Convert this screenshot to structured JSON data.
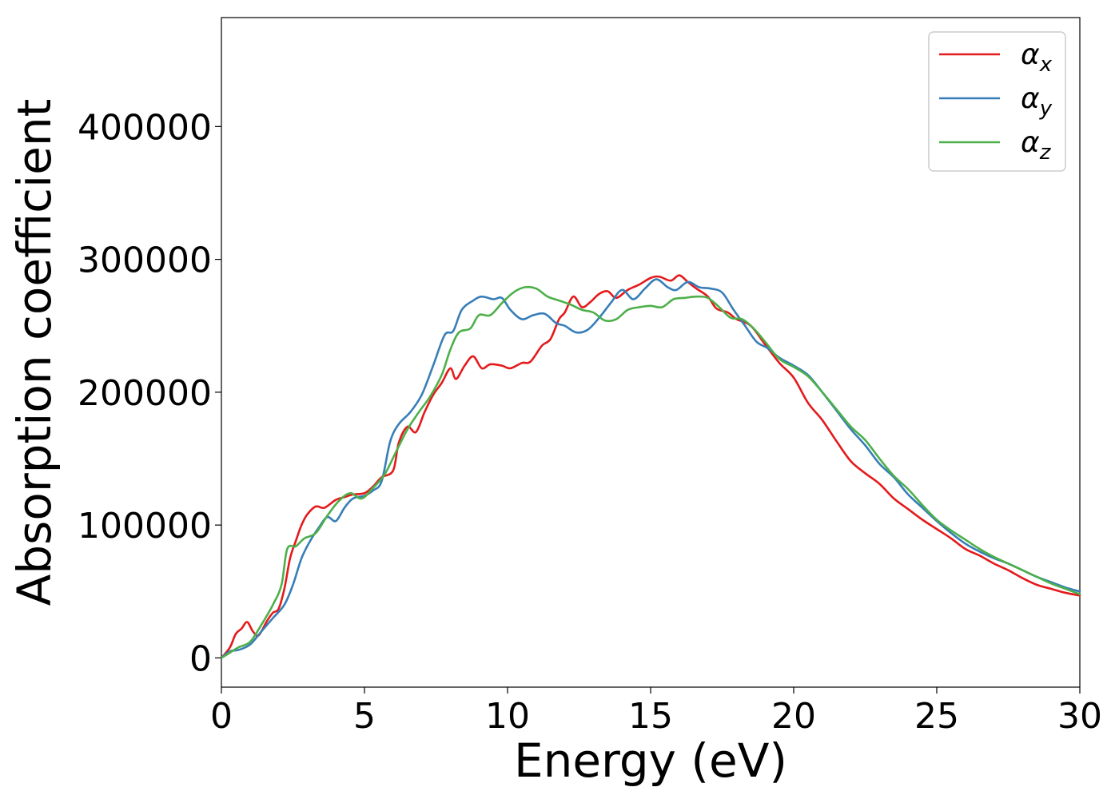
{
  "chart_data": {
    "type": "line",
    "xlabel": "Energy (eV)",
    "ylabel": "Absorption coefficient",
    "xlim": [
      0,
      30
    ],
    "ylim": [
      -22000,
      482000
    ],
    "xticks": [
      0,
      5,
      10,
      15,
      20,
      25,
      30
    ],
    "yticks": [
      0,
      100000,
      200000,
      300000,
      400000
    ],
    "grid": false,
    "legend_position": "top-right",
    "series": [
      {
        "name": "αx",
        "symbol": "α",
        "subscript": "x",
        "color": "#e41a1c",
        "x": [
          0,
          0.3,
          0.5,
          0.7,
          0.9,
          1.1,
          1.3,
          1.6,
          1.8,
          2.0,
          2.2,
          2.4,
          2.6,
          2.8,
          3.0,
          3.3,
          3.6,
          4.0,
          4.3,
          4.6,
          5.0,
          5.3,
          5.6,
          6.0,
          6.2,
          6.5,
          6.8,
          7.1,
          7.4,
          7.7,
          8.0,
          8.2,
          8.5,
          8.8,
          9.1,
          9.4,
          9.8,
          10.1,
          10.5,
          10.8,
          11.2,
          11.5,
          11.8,
          12.0,
          12.3,
          12.6,
          12.9,
          13.2,
          13.5,
          13.8,
          14.2,
          14.6,
          15.0,
          15.3,
          15.7,
          16.0,
          16.3,
          16.6,
          17.0,
          17.3,
          17.7,
          18.0,
          18.5,
          19.0,
          19.5,
          20.0,
          20.5,
          21.0,
          21.5,
          22.0,
          22.5,
          23.0,
          23.5,
          24.0,
          24.5,
          25.0,
          25.5,
          26.0,
          26.5,
          27.0,
          27.5,
          28.0,
          28.5,
          29.0,
          29.5,
          30.0
        ],
        "y": [
          0,
          8000,
          18000,
          22000,
          27000,
          20000,
          17000,
          28000,
          34000,
          37000,
          52000,
          75000,
          88000,
          100000,
          108000,
          114000,
          113000,
          119000,
          121000,
          123000,
          124000,
          129000,
          136000,
          141000,
          162000,
          174000,
          170000,
          185000,
          198000,
          207000,
          218000,
          210000,
          220000,
          227000,
          218000,
          221000,
          220000,
          218000,
          222000,
          223000,
          235000,
          240000,
          255000,
          260000,
          272000,
          264000,
          268000,
          274000,
          276000,
          271000,
          277000,
          281000,
          286000,
          287000,
          284000,
          288000,
          283000,
          278000,
          272000,
          263000,
          260000,
          255000,
          250000,
          236000,
          222000,
          211000,
          192000,
          179000,
          163000,
          148000,
          139000,
          131000,
          120000,
          112000,
          104000,
          97000,
          90000,
          82000,
          77000,
          71000,
          66000,
          60000,
          55000,
          52000,
          49000,
          47000
        ]
      },
      {
        "name": "αy",
        "symbol": "α",
        "subscript": "y",
        "color": "#377eb8",
        "x": [
          0,
          0.3,
          0.6,
          1.0,
          1.4,
          1.8,
          2.2,
          2.5,
          2.8,
          3.1,
          3.4,
          3.7,
          4.0,
          4.3,
          4.6,
          5.0,
          5.3,
          5.6,
          5.9,
          6.2,
          6.6,
          7.0,
          7.4,
          7.8,
          8.1,
          8.4,
          8.8,
          9.1,
          9.5,
          9.8,
          10.1,
          10.5,
          10.9,
          11.3,
          11.7,
          12.0,
          12.4,
          12.8,
          13.2,
          13.6,
          14.0,
          14.4,
          14.8,
          15.2,
          15.6,
          15.9,
          16.3,
          16.7,
          17.1,
          17.5,
          17.9,
          18.3,
          18.7,
          19.1,
          19.5,
          20.0,
          20.5,
          21.0,
          21.5,
          22.0,
          22.5,
          23.0,
          23.5,
          24.0,
          24.5,
          25.0,
          25.5,
          26.0,
          26.5,
          27.0,
          27.5,
          28.0,
          28.5,
          29.0,
          29.5,
          30.0
        ],
        "y": [
          0,
          5000,
          6000,
          10000,
          20000,
          30000,
          40000,
          55000,
          75000,
          88000,
          98000,
          106000,
          103000,
          113000,
          120000,
          122000,
          126000,
          133000,
          163000,
          176000,
          185000,
          198000,
          220000,
          243000,
          246000,
          262000,
          269000,
          272000,
          270000,
          271000,
          262000,
          255000,
          258000,
          259000,
          252000,
          250000,
          245000,
          247000,
          256000,
          267000,
          277000,
          270000,
          278000,
          285000,
          279000,
          277000,
          283000,
          279000,
          278000,
          275000,
          262000,
          250000,
          238000,
          233000,
          226000,
          220000,
          213000,
          200000,
          186000,
          172000,
          160000,
          146000,
          136000,
          123000,
          113000,
          103000,
          94000,
          86000,
          80000,
          75000,
          71000,
          66000,
          61000,
          57000,
          53000,
          50000
        ]
      },
      {
        "name": "αz",
        "symbol": "α",
        "subscript": "z",
        "color": "#4daf4a",
        "x": [
          0,
          0.3,
          0.6,
          1.0,
          1.4,
          1.8,
          2.1,
          2.3,
          2.6,
          2.9,
          3.3,
          3.7,
          4.1,
          4.5,
          4.9,
          5.3,
          5.7,
          6.1,
          6.5,
          6.9,
          7.3,
          7.7,
          8.0,
          8.3,
          8.7,
          9.0,
          9.4,
          9.8,
          10.2,
          10.6,
          11.0,
          11.4,
          11.8,
          12.2,
          12.6,
          13.0,
          13.4,
          13.8,
          14.2,
          14.6,
          15.0,
          15.4,
          15.8,
          16.2,
          16.6,
          17.0,
          17.4,
          17.8,
          18.2,
          18.6,
          19.0,
          19.5,
          20.0,
          20.5,
          21.0,
          21.5,
          22.0,
          22.5,
          23.0,
          23.5,
          24.0,
          24.5,
          25.0,
          25.5,
          26.0,
          26.5,
          27.0,
          27.5,
          28.0,
          28.5,
          29.0,
          29.5,
          30.0
        ],
        "y": [
          0,
          4000,
          8000,
          12000,
          25000,
          40000,
          55000,
          82000,
          84000,
          90000,
          94000,
          107000,
          118000,
          124000,
          120000,
          128000,
          138000,
          155000,
          172000,
          185000,
          197000,
          213000,
          232000,
          245000,
          248000,
          258000,
          258000,
          267000,
          275000,
          279000,
          278000,
          272000,
          269000,
          266000,
          262000,
          260000,
          254000,
          255000,
          262000,
          264000,
          265000,
          264000,
          270000,
          271000,
          272000,
          271000,
          264000,
          256000,
          255000,
          248000,
          238000,
          225000,
          219000,
          212000,
          200000,
          187000,
          174000,
          164000,
          150000,
          137000,
          127000,
          115000,
          104000,
          96000,
          89000,
          82000,
          76000,
          71000,
          66000,
          61000,
          56000,
          52000,
          48000
        ]
      }
    ]
  }
}
